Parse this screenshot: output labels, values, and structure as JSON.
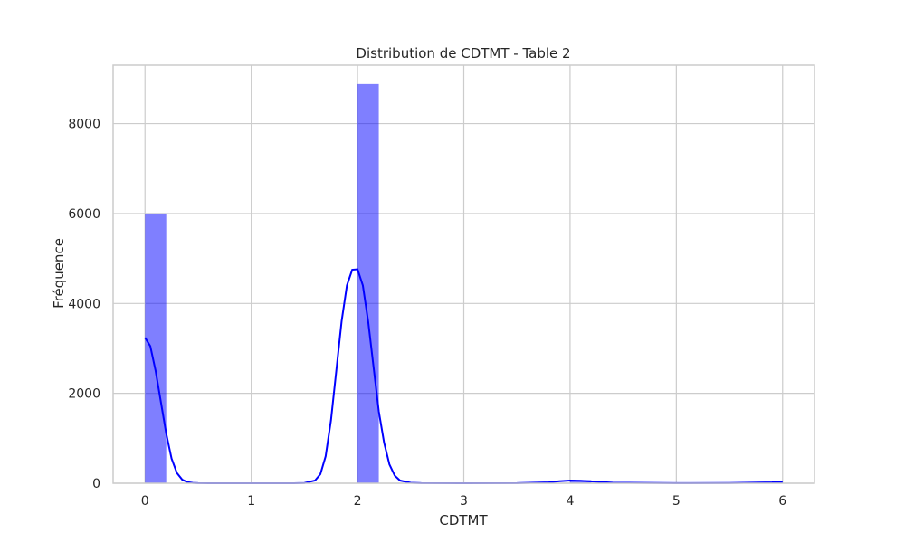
{
  "chart_data": {
    "type": "bar",
    "title": "Distribution de CDTMT - Table 2",
    "xlabel": "CDTMT",
    "ylabel": "Fréquence",
    "xlim": [
      -0.3,
      6.3
    ],
    "ylim": [
      0,
      9300
    ],
    "xticks": [
      0,
      1,
      2,
      3,
      4,
      5,
      6
    ],
    "yticks": [
      0,
      2000,
      4000,
      6000,
      8000
    ],
    "grid": true,
    "color": "#0000ff",
    "bins": [
      {
        "x0": 0.0,
        "x1": 0.2,
        "count": 6000
      },
      {
        "x0": 2.0,
        "x1": 2.2,
        "count": 8880
      },
      {
        "x0": 4.0,
        "x1": 4.2,
        "count": 70
      },
      {
        "x0": 5.8,
        "x1": 6.0,
        "count": 30
      }
    ],
    "kde": {
      "x": [
        0,
        0.05,
        0.1,
        0.15,
        0.2,
        0.25,
        0.3,
        0.35,
        0.4,
        0.45,
        0.5,
        0.6,
        0.8,
        1.0,
        1.2,
        1.4,
        1.5,
        1.6,
        1.65,
        1.7,
        1.75,
        1.8,
        1.85,
        1.9,
        1.95,
        2.0,
        2.05,
        2.1,
        2.15,
        2.2,
        2.25,
        2.3,
        2.35,
        2.4,
        2.5,
        2.6,
        3.0,
        3.5,
        3.8,
        3.9,
        4.0,
        4.1,
        4.2,
        4.4,
        5.0,
        5.5,
        5.9,
        6.0
      ],
      "y": [
        3240,
        3050,
        2500,
        1800,
        1100,
        550,
        230,
        80,
        25,
        8,
        2,
        0,
        0,
        0,
        0,
        0,
        5,
        60,
        200,
        600,
        1400,
        2500,
        3600,
        4400,
        4750,
        4760,
        4400,
        3600,
        2600,
        1600,
        900,
        420,
        170,
        60,
        10,
        2,
        0,
        2,
        20,
        45,
        60,
        55,
        40,
        12,
        2,
        5,
        20,
        30
      ]
    }
  }
}
